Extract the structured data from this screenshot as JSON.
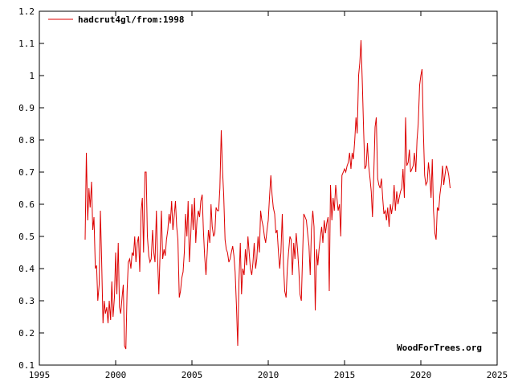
{
  "chart_data": {
    "type": "line",
    "title": "",
    "xlabel": "",
    "ylabel": "",
    "xlim": [
      1995,
      2025
    ],
    "ylim": [
      0.1,
      1.2
    ],
    "x_ticks": [
      "1995",
      "2000",
      "2005",
      "2010",
      "2015",
      "2020",
      "2025"
    ],
    "y_ticks": [
      "0.1",
      "0.2",
      "0.3",
      "0.4",
      "0.5",
      "0.6",
      "0.7",
      "0.8",
      "0.9",
      "1",
      "1.1",
      "1.2"
    ],
    "grid": false,
    "legend_position": "top-left",
    "credit": "WoodForTrees.org",
    "series": [
      {
        "name": "hadcrut4gl/from:1998",
        "color": "#dd0000",
        "x": [
          1998.0,
          1998.08,
          1998.17,
          1998.25,
          1998.33,
          1998.42,
          1998.5,
          1998.58,
          1998.67,
          1998.75,
          1998.83,
          1998.92,
          1999.0,
          1999.08,
          1999.17,
          1999.25,
          1999.33,
          1999.42,
          1999.5,
          1999.58,
          1999.67,
          1999.75,
          1999.83,
          1999.92,
          2000.0,
          2000.08,
          2000.17,
          2000.25,
          2000.33,
          2000.42,
          2000.5,
          2000.58,
          2000.67,
          2000.75,
          2000.83,
          2000.92,
          2001.0,
          2001.08,
          2001.17,
          2001.25,
          2001.33,
          2001.42,
          2001.5,
          2001.58,
          2001.67,
          2001.75,
          2001.83,
          2001.92,
          2002.0,
          2002.08,
          2002.17,
          2002.25,
          2002.33,
          2002.42,
          2002.5,
          2002.58,
          2002.67,
          2002.75,
          2002.83,
          2002.92,
          2003.0,
          2003.08,
          2003.17,
          2003.25,
          2003.33,
          2003.42,
          2003.5,
          2003.58,
          2003.67,
          2003.75,
          2003.83,
          2003.92,
          2004.0,
          2004.08,
          2004.17,
          2004.25,
          2004.33,
          2004.42,
          2004.5,
          2004.58,
          2004.67,
          2004.75,
          2004.83,
          2004.92,
          2005.0,
          2005.08,
          2005.17,
          2005.25,
          2005.33,
          2005.42,
          2005.5,
          2005.58,
          2005.67,
          2005.75,
          2005.83,
          2005.92,
          2006.0,
          2006.08,
          2006.17,
          2006.25,
          2006.33,
          2006.42,
          2006.5,
          2006.58,
          2006.67,
          2006.75,
          2006.83,
          2006.92,
          2007.0,
          2007.08,
          2007.17,
          2007.25,
          2007.33,
          2007.42,
          2007.5,
          2007.58,
          2007.67,
          2007.75,
          2007.83,
          2007.92,
          2008.0,
          2008.08,
          2008.17,
          2008.25,
          2008.33,
          2008.42,
          2008.5,
          2008.58,
          2008.67,
          2008.75,
          2008.83,
          2008.92,
          2009.0,
          2009.08,
          2009.17,
          2009.25,
          2009.33,
          2009.42,
          2009.5,
          2009.58,
          2009.67,
          2009.75,
          2009.83,
          2009.92,
          2010.0,
          2010.08,
          2010.17,
          2010.25,
          2010.33,
          2010.42,
          2010.5,
          2010.58,
          2010.67,
          2010.75,
          2010.83,
          2010.92,
          2011.0,
          2011.08,
          2011.17,
          2011.25,
          2011.33,
          2011.42,
          2011.5,
          2011.58,
          2011.67,
          2011.75,
          2011.83,
          2011.92,
          2012.0,
          2012.08,
          2012.17,
          2012.25,
          2012.33,
          2012.42,
          2012.5,
          2012.58,
          2012.67,
          2012.75,
          2012.83,
          2012.92,
          2013.0,
          2013.08,
          2013.17,
          2013.25,
          2013.33,
          2013.42,
          2013.5,
          2013.58,
          2013.67,
          2013.75,
          2013.83,
          2013.92,
          2014.0,
          2014.08,
          2014.17,
          2014.25,
          2014.33,
          2014.42,
          2014.5,
          2014.58,
          2014.67,
          2014.75,
          2014.83,
          2014.92,
          2015.0,
          2015.08,
          2015.17,
          2015.25,
          2015.33,
          2015.42,
          2015.5,
          2015.58,
          2015.67,
          2015.75,
          2015.83,
          2015.92,
          2016.0,
          2016.08,
          2016.17,
          2016.25,
          2016.33,
          2016.42,
          2016.5,
          2016.58,
          2016.67,
          2016.75,
          2016.83,
          2016.92,
          2017.0,
          2017.08,
          2017.17,
          2017.25,
          2017.33,
          2017.42,
          2017.5,
          2017.58,
          2017.67,
          2017.75,
          2017.83,
          2017.92,
          2018.0,
          2018.08,
          2018.17,
          2018.25,
          2018.33,
          2018.42,
          2018.5,
          2018.58,
          2018.67,
          2018.75,
          2018.83,
          2018.92,
          2019.0,
          2019.08,
          2019.17,
          2019.25,
          2019.33,
          2019.42,
          2019.5,
          2019.58,
          2019.67,
          2019.75,
          2019.83,
          2019.92,
          2020.0,
          2020.08,
          2020.17,
          2020.25,
          2020.33,
          2020.42,
          2020.5,
          2020.58,
          2020.67,
          2020.75,
          2020.83,
          2020.92,
          2021.0,
          2021.08,
          2021.17,
          2021.25,
          2021.33,
          2021.42,
          2021.5,
          2021.58,
          2021.67,
          2021.75,
          2021.83,
          2021.92
        ],
        "values": [
          0.49,
          0.76,
          0.55,
          0.65,
          0.59,
          0.67,
          0.52,
          0.56,
          0.4,
          0.41,
          0.3,
          0.35,
          0.58,
          0.43,
          0.23,
          0.3,
          0.26,
          0.28,
          0.23,
          0.3,
          0.24,
          0.36,
          0.25,
          0.31,
          0.45,
          0.32,
          0.48,
          0.28,
          0.26,
          0.31,
          0.35,
          0.16,
          0.15,
          0.33,
          0.42,
          0.43,
          0.4,
          0.45,
          0.44,
          0.5,
          0.42,
          0.48,
          0.5,
          0.39,
          0.58,
          0.62,
          0.45,
          0.7,
          0.7,
          0.5,
          0.44,
          0.42,
          0.43,
          0.52,
          0.45,
          0.42,
          0.58,
          0.43,
          0.32,
          0.46,
          0.58,
          0.43,
          0.46,
          0.44,
          0.49,
          0.52,
          0.57,
          0.54,
          0.61,
          0.52,
          0.56,
          0.61,
          0.53,
          0.49,
          0.31,
          0.33,
          0.37,
          0.39,
          0.45,
          0.57,
          0.5,
          0.61,
          0.42,
          0.5,
          0.6,
          0.52,
          0.62,
          0.48,
          0.55,
          0.58,
          0.56,
          0.61,
          0.63,
          0.52,
          0.44,
          0.38,
          0.45,
          0.52,
          0.48,
          0.6,
          0.53,
          0.5,
          0.51,
          0.59,
          0.58,
          0.58,
          0.65,
          0.83,
          0.71,
          0.63,
          0.49,
          0.46,
          0.45,
          0.42,
          0.43,
          0.45,
          0.47,
          0.44,
          0.39,
          0.28,
          0.16,
          0.36,
          0.48,
          0.32,
          0.4,
          0.38,
          0.46,
          0.41,
          0.5,
          0.45,
          0.4,
          0.38,
          0.42,
          0.48,
          0.4,
          0.43,
          0.5,
          0.45,
          0.58,
          0.55,
          0.53,
          0.5,
          0.48,
          0.52,
          0.55,
          0.62,
          0.69,
          0.63,
          0.59,
          0.57,
          0.51,
          0.52,
          0.45,
          0.4,
          0.45,
          0.57,
          0.41,
          0.33,
          0.31,
          0.4,
          0.45,
          0.5,
          0.49,
          0.38,
          0.48,
          0.43,
          0.51,
          0.46,
          0.4,
          0.32,
          0.3,
          0.44,
          0.57,
          0.56,
          0.55,
          0.51,
          0.47,
          0.38,
          0.52,
          0.58,
          0.53,
          0.27,
          0.46,
          0.41,
          0.46,
          0.5,
          0.53,
          0.48,
          0.55,
          0.51,
          0.54,
          0.56,
          0.33,
          0.66,
          0.55,
          0.62,
          0.58,
          0.66,
          0.62,
          0.58,
          0.6,
          0.5,
          0.69,
          0.7,
          0.71,
          0.7,
          0.72,
          0.73,
          0.76,
          0.71,
          0.76,
          0.74,
          0.8,
          0.87,
          0.82,
          1.0,
          1.04,
          1.11,
          0.97,
          0.83,
          0.71,
          0.72,
          0.79,
          0.72,
          0.68,
          0.64,
          0.56,
          0.7,
          0.84,
          0.87,
          0.68,
          0.66,
          0.65,
          0.68,
          0.62,
          0.57,
          0.58,
          0.55,
          0.59,
          0.53,
          0.6,
          0.57,
          0.6,
          0.66,
          0.58,
          0.64,
          0.6,
          0.62,
          0.64,
          0.65,
          0.71,
          0.62,
          0.87,
          0.72,
          0.73,
          0.77,
          0.7,
          0.71,
          0.72,
          0.76,
          0.7,
          0.8,
          0.85,
          0.97,
          1.0,
          1.02,
          0.82,
          0.69,
          0.66,
          0.67,
          0.73,
          0.69,
          0.62,
          0.74,
          0.58,
          0.51,
          0.49,
          0.59,
          0.58,
          0.63,
          0.66,
          0.72,
          0.66,
          0.69,
          0.72,
          0.71,
          0.69,
          0.65
        ]
      }
    ]
  }
}
